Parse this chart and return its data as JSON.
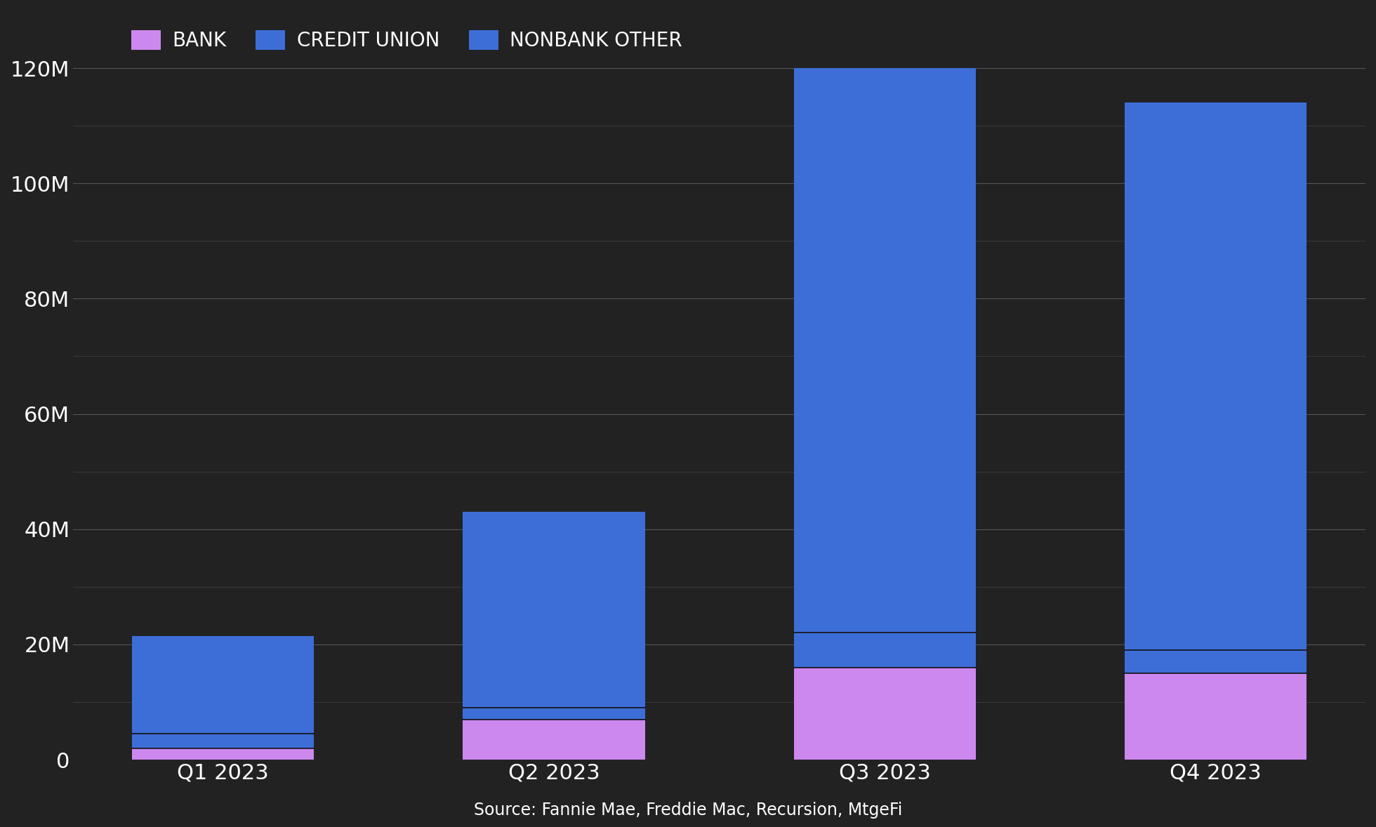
{
  "categories": [
    "Q1 2023",
    "Q2 2023",
    "Q3 2023",
    "Q4 2023"
  ],
  "bank": [
    2000000,
    7000000,
    16000000,
    15000000
  ],
  "credit_union": [
    2500000,
    2000000,
    6000000,
    4000000
  ],
  "nonbank_other": [
    17000000,
    34000000,
    98000000,
    95000000
  ],
  "bank_color": "#cc88ee",
  "credit_union_color": "#3d6ed8",
  "nonbank_other_color": "#3d6ed8",
  "background_color": "#222222",
  "plot_bg_color": "#222222",
  "text_color": "#ffffff",
  "grid_color": "#555555",
  "legend_labels": [
    "BANK",
    "CREDIT UNION",
    "NONBANK OTHER"
  ],
  "source_text": "Source: Fannie Mae, Freddie Mac, Recursion, MtgeFi",
  "ylim": [
    0,
    130000000
  ],
  "yticks": [
    0,
    20000000,
    40000000,
    60000000,
    80000000,
    100000000,
    120000000
  ],
  "ytick_labels": [
    "0",
    "20M",
    "40M",
    "60M",
    "80M",
    "100M",
    "120M"
  ],
  "minor_yticks": [
    10000000,
    30000000,
    50000000,
    70000000,
    90000000,
    110000000
  ],
  "bar_width": 0.55
}
